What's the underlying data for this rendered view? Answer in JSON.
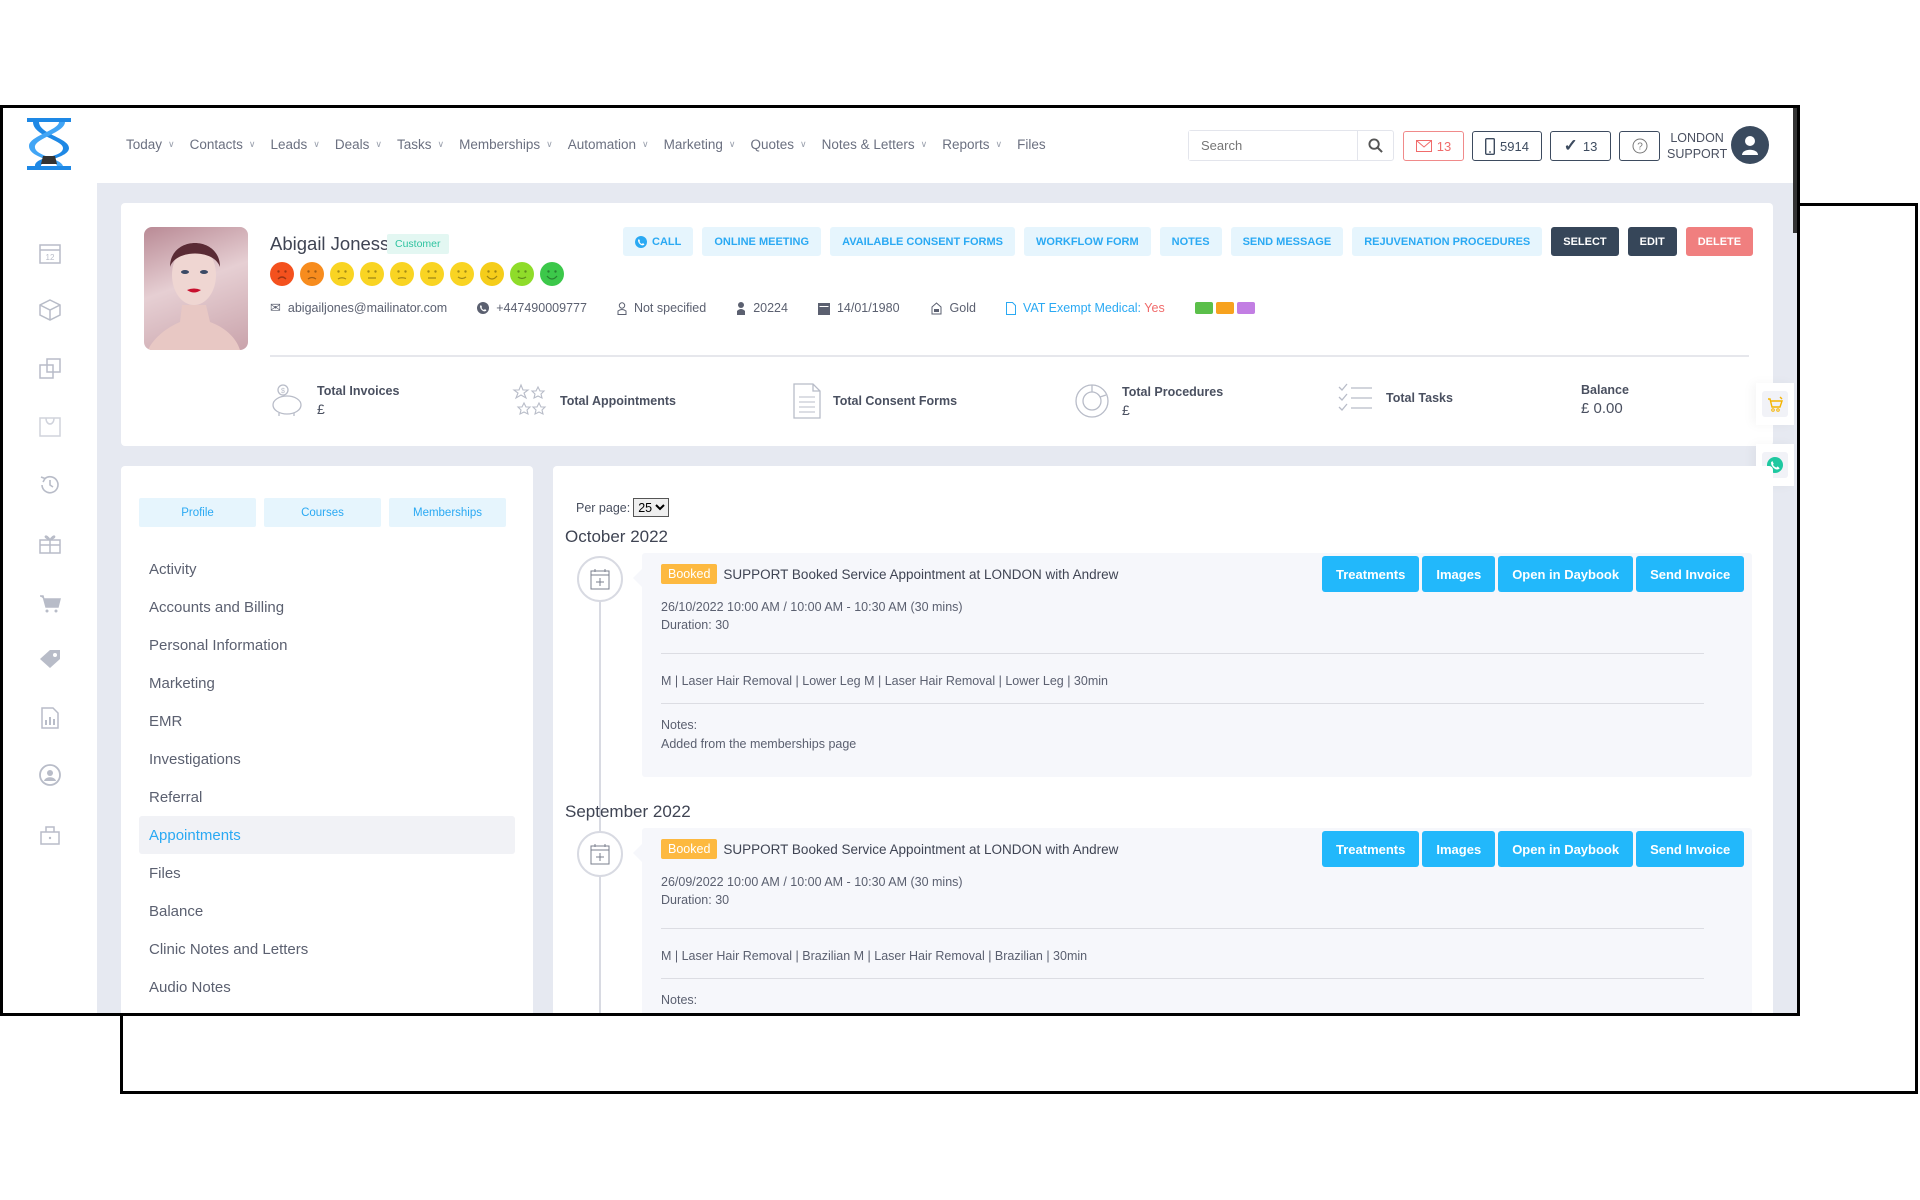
{
  "header": {
    "nav": [
      {
        "label": "Today",
        "dropdown": true
      },
      {
        "label": "Contacts",
        "dropdown": true
      },
      {
        "label": "Leads",
        "dropdown": true
      },
      {
        "label": "Deals",
        "dropdown": true
      },
      {
        "label": "Tasks",
        "dropdown": true
      },
      {
        "label": "Memberships",
        "dropdown": true
      },
      {
        "label": "Automation",
        "dropdown": true
      },
      {
        "label": "Marketing",
        "dropdown": true
      },
      {
        "label": "Quotes",
        "dropdown": true
      },
      {
        "label": "Notes & Letters",
        "dropdown": true
      },
      {
        "label": "Reports",
        "dropdown": true
      },
      {
        "label": "Files",
        "dropdown": false
      }
    ],
    "chevron": "⌄",
    "search_placeholder": "Search",
    "mail_count": "13",
    "sms_count": "5914",
    "tasks_count": "13",
    "user_line1": "LONDON",
    "user_line2": "SUPPORT"
  },
  "sidebar_icons": [
    "calendar-icon",
    "box-icon",
    "copy-icon",
    "inbox-icon",
    "history-icon",
    "gift-icon",
    "cart-icon",
    "tag-icon",
    "report-icon",
    "user-circle-icon",
    "lock-icon"
  ],
  "profile": {
    "name": "Abigail Joness",
    "tag": "Customer",
    "actions": [
      {
        "label": "CALL",
        "style": "light"
      },
      {
        "label": "ONLINE MEETING",
        "style": "light"
      },
      {
        "label": "AVAILABLE CONSENT FORMS",
        "style": "light"
      },
      {
        "label": "WORKFLOW FORM",
        "style": "light"
      },
      {
        "label": "NOTES",
        "style": "light"
      },
      {
        "label": "SEND MESSAGE",
        "style": "light"
      },
      {
        "label": "REJUVENATION PROCEDURES",
        "style": "light"
      },
      {
        "label": "SELECT",
        "style": "dark"
      },
      {
        "label": "EDIT",
        "style": "dark"
      },
      {
        "label": "DELETE",
        "style": "red"
      }
    ],
    "satisfaction_colors": [
      "#f4511e",
      "#f78c1e",
      "#f9d423",
      "#f9d423",
      "#f9d423",
      "#f9d423",
      "#f9d423",
      "#f5cd1a",
      "#8fdc2a",
      "#3cc84a"
    ],
    "email": "abigailjones@mailinator.com",
    "phone": "+447490009777",
    "gender": "Not specified",
    "id": "20224",
    "dob": "14/01/1980",
    "membership": "Gold",
    "vat_label": "VAT Exempt Medical:",
    "vat_value": "Yes",
    "color_tags": [
      "#5bbf4a",
      "#f7a21e",
      "#c27ee3"
    ],
    "stats": [
      {
        "label": "Total Invoices",
        "value": "£"
      },
      {
        "label": "Total Appointments",
        "value": ""
      },
      {
        "label": "Total Consent Forms",
        "value": ""
      },
      {
        "label": "Total Procedures",
        "value": "£"
      },
      {
        "label": "Total Tasks",
        "value": ""
      },
      {
        "label": "Balance",
        "value": "£ 0.00"
      }
    ]
  },
  "left_panel": {
    "tabs": [
      "Profile",
      "Courses",
      "Memberships"
    ],
    "menu": [
      "Activity",
      "Accounts and Billing",
      "Personal Information",
      "Marketing",
      "EMR",
      "Investigations",
      "Referral",
      "Appointments",
      "Files",
      "Balance",
      "Clinic Notes and Letters",
      "Audio Notes"
    ],
    "active": "Appointments"
  },
  "appointments": {
    "per_page_label": "Per page:",
    "per_page": "25",
    "groups": [
      {
        "month": "October 2022",
        "status": "Booked",
        "title": "SUPPORT Booked Service Appointment at LONDON with Andrew",
        "datetime": "26/10/2022 10:00 AM / 10:00 AM - 10:30 AM (30 mins)",
        "duration": "Duration: 30",
        "service": "M | Laser Hair Removal | Lower Leg M | Laser Hair Removal | Lower Leg | 30min",
        "notes_label": "Notes:",
        "notes": "Added from the memberships page"
      },
      {
        "month": "September 2022",
        "status": "Booked",
        "title": "SUPPORT Booked Service Appointment at LONDON with Andrew",
        "datetime": "26/09/2022 10:00 AM / 10:00 AM - 10:30 AM (30 mins)",
        "duration": "Duration: 30",
        "service": "M | Laser Hair Removal | Brazilian M | Laser Hair Removal | Brazilian | 30min",
        "notes_label": "Notes:"
      }
    ],
    "entry_buttons": [
      "Treatments",
      "Images",
      "Open in Daybook",
      "Send Invoice"
    ]
  },
  "colors": {
    "accent": "#22b8fb",
    "badge": "#fdb940",
    "dark": "#364659",
    "danger": "#f07f7f"
  }
}
